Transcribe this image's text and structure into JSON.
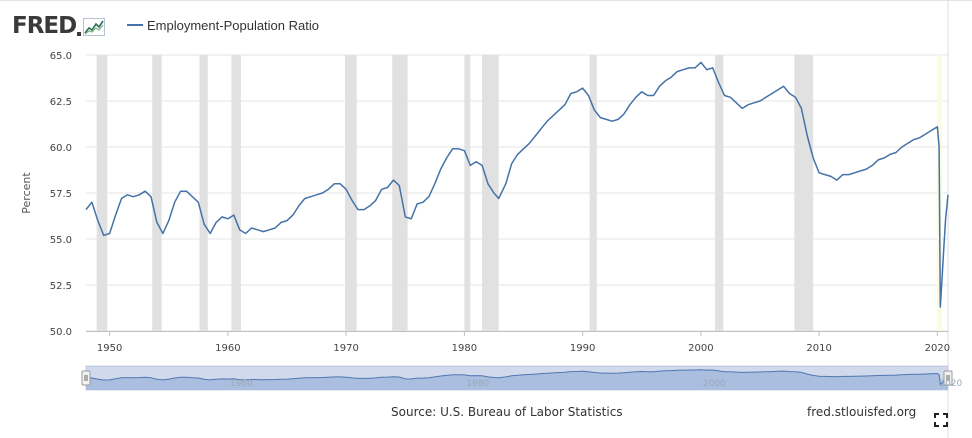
{
  "header": {
    "logo_text": "FRED"
  },
  "legend": {
    "series_label": "Employment-Population Ratio",
    "color": "#4572a7"
  },
  "footer": {
    "source": "Source: U.S. Bureau of Labor Statistics",
    "site": "fred.stlouisfed.org",
    "fullscreen_icon": "fullscreen-icon"
  },
  "chart_data": {
    "type": "line",
    "title": "",
    "xlabel": "",
    "ylabel": "Percent",
    "ylim": [
      50,
      65
    ],
    "yticks": [
      "50.0",
      "52.5",
      "55.0",
      "57.5",
      "60.0",
      "62.5",
      "65.0"
    ],
    "xlim": [
      1948.0,
      2020.9
    ],
    "xticks": [
      "1950",
      "1960",
      "1970",
      "1980",
      "1990",
      "2000",
      "2010",
      "2020"
    ],
    "grid": "horizontal",
    "recessions": [
      [
        1948.9,
        1949.8
      ],
      [
        1953.6,
        1954.4
      ],
      [
        1957.6,
        1958.3
      ],
      [
        1960.3,
        1961.1
      ],
      [
        1969.9,
        1970.9
      ],
      [
        1973.9,
        1975.2
      ],
      [
        1980.0,
        1980.5
      ],
      [
        1981.5,
        1982.9
      ],
      [
        1990.6,
        1991.2
      ],
      [
        2001.2,
        2001.9
      ],
      [
        2007.9,
        2009.5
      ],
      [
        2020.2,
        2020.4
      ]
    ],
    "series": [
      {
        "name": "Employment-Population Ratio",
        "color": "#4572a7",
        "points": [
          [
            1948.0,
            56.6
          ],
          [
            1948.5,
            57.0
          ],
          [
            1949.0,
            56.0
          ],
          [
            1949.5,
            55.2
          ],
          [
            1950.0,
            55.3
          ],
          [
            1950.5,
            56.3
          ],
          [
            1951.0,
            57.2
          ],
          [
            1951.5,
            57.4
          ],
          [
            1952.0,
            57.3
          ],
          [
            1952.5,
            57.4
          ],
          [
            1953.0,
            57.6
          ],
          [
            1953.5,
            57.3
          ],
          [
            1954.0,
            55.9
          ],
          [
            1954.5,
            55.3
          ],
          [
            1955.0,
            56.0
          ],
          [
            1955.5,
            57.0
          ],
          [
            1956.0,
            57.6
          ],
          [
            1956.5,
            57.6
          ],
          [
            1957.0,
            57.3
          ],
          [
            1957.5,
            57.0
          ],
          [
            1958.0,
            55.8
          ],
          [
            1958.5,
            55.3
          ],
          [
            1959.0,
            55.9
          ],
          [
            1959.5,
            56.2
          ],
          [
            1960.0,
            56.1
          ],
          [
            1960.5,
            56.3
          ],
          [
            1961.0,
            55.5
          ],
          [
            1961.5,
            55.3
          ],
          [
            1962.0,
            55.6
          ],
          [
            1962.5,
            55.5
          ],
          [
            1963.0,
            55.4
          ],
          [
            1963.5,
            55.5
          ],
          [
            1964.0,
            55.6
          ],
          [
            1964.5,
            55.9
          ],
          [
            1965.0,
            56.0
          ],
          [
            1965.5,
            56.3
          ],
          [
            1966.0,
            56.8
          ],
          [
            1966.5,
            57.2
          ],
          [
            1967.0,
            57.3
          ],
          [
            1967.5,
            57.4
          ],
          [
            1968.0,
            57.5
          ],
          [
            1968.5,
            57.7
          ],
          [
            1969.0,
            58.0
          ],
          [
            1969.5,
            58.0
          ],
          [
            1970.0,
            57.7
          ],
          [
            1970.5,
            57.1
          ],
          [
            1971.0,
            56.6
          ],
          [
            1971.5,
            56.6
          ],
          [
            1972.0,
            56.8
          ],
          [
            1972.5,
            57.1
          ],
          [
            1973.0,
            57.7
          ],
          [
            1973.5,
            57.8
          ],
          [
            1974.0,
            58.2
          ],
          [
            1974.5,
            57.9
          ],
          [
            1975.0,
            56.2
          ],
          [
            1975.5,
            56.1
          ],
          [
            1976.0,
            56.9
          ],
          [
            1976.5,
            57.0
          ],
          [
            1977.0,
            57.3
          ],
          [
            1977.5,
            58.0
          ],
          [
            1978.0,
            58.8
          ],
          [
            1978.5,
            59.4
          ],
          [
            1979.0,
            59.9
          ],
          [
            1979.5,
            59.9
          ],
          [
            1980.0,
            59.8
          ],
          [
            1980.5,
            59.0
          ],
          [
            1981.0,
            59.2
          ],
          [
            1981.5,
            59.0
          ],
          [
            1982.0,
            58.0
          ],
          [
            1982.5,
            57.5
          ],
          [
            1982.9,
            57.2
          ],
          [
            1983.5,
            58.0
          ],
          [
            1984.0,
            59.1
          ],
          [
            1984.5,
            59.6
          ],
          [
            1985.0,
            59.9
          ],
          [
            1985.5,
            60.2
          ],
          [
            1986.0,
            60.6
          ],
          [
            1986.5,
            61.0
          ],
          [
            1987.0,
            61.4
          ],
          [
            1987.5,
            61.7
          ],
          [
            1988.0,
            62.0
          ],
          [
            1988.5,
            62.3
          ],
          [
            1989.0,
            62.9
          ],
          [
            1989.5,
            63.0
          ],
          [
            1990.0,
            63.2
          ],
          [
            1990.5,
            62.8
          ],
          [
            1991.0,
            62.0
          ],
          [
            1991.5,
            61.6
          ],
          [
            1992.0,
            61.5
          ],
          [
            1992.5,
            61.4
          ],
          [
            1993.0,
            61.5
          ],
          [
            1993.5,
            61.8
          ],
          [
            1994.0,
            62.3
          ],
          [
            1994.5,
            62.7
          ],
          [
            1995.0,
            63.0
          ],
          [
            1995.5,
            62.8
          ],
          [
            1996.0,
            62.8
          ],
          [
            1996.5,
            63.3
          ],
          [
            1997.0,
            63.6
          ],
          [
            1997.5,
            63.8
          ],
          [
            1998.0,
            64.1
          ],
          [
            1998.5,
            64.2
          ],
          [
            1999.0,
            64.3
          ],
          [
            1999.5,
            64.3
          ],
          [
            2000.0,
            64.6
          ],
          [
            2000.5,
            64.2
          ],
          [
            2001.0,
            64.3
          ],
          [
            2001.5,
            63.5
          ],
          [
            2002.0,
            62.8
          ],
          [
            2002.5,
            62.7
          ],
          [
            2003.0,
            62.4
          ],
          [
            2003.5,
            62.1
          ],
          [
            2004.0,
            62.3
          ],
          [
            2004.5,
            62.4
          ],
          [
            2005.0,
            62.5
          ],
          [
            2005.5,
            62.7
          ],
          [
            2006.0,
            62.9
          ],
          [
            2006.5,
            63.1
          ],
          [
            2007.0,
            63.3
          ],
          [
            2007.5,
            62.9
          ],
          [
            2008.0,
            62.7
          ],
          [
            2008.5,
            62.1
          ],
          [
            2009.0,
            60.6
          ],
          [
            2009.5,
            59.4
          ],
          [
            2010.0,
            58.6
          ],
          [
            2010.5,
            58.5
          ],
          [
            2011.0,
            58.4
          ],
          [
            2011.5,
            58.2
          ],
          [
            2012.0,
            58.5
          ],
          [
            2012.5,
            58.5
          ],
          [
            2013.0,
            58.6
          ],
          [
            2013.5,
            58.7
          ],
          [
            2014.0,
            58.8
          ],
          [
            2014.5,
            59.0
          ],
          [
            2015.0,
            59.3
          ],
          [
            2015.5,
            59.4
          ],
          [
            2016.0,
            59.6
          ],
          [
            2016.5,
            59.7
          ],
          [
            2017.0,
            60.0
          ],
          [
            2017.5,
            60.2
          ],
          [
            2018.0,
            60.4
          ],
          [
            2018.5,
            60.5
          ],
          [
            2019.0,
            60.7
          ],
          [
            2019.5,
            60.9
          ],
          [
            2020.0,
            61.1
          ],
          [
            2020.15,
            60.0
          ],
          [
            2020.25,
            51.3
          ],
          [
            2020.4,
            52.9
          ],
          [
            2020.55,
            54.6
          ],
          [
            2020.7,
            56.1
          ],
          [
            2020.9,
            57.4
          ]
        ]
      }
    ]
  }
}
